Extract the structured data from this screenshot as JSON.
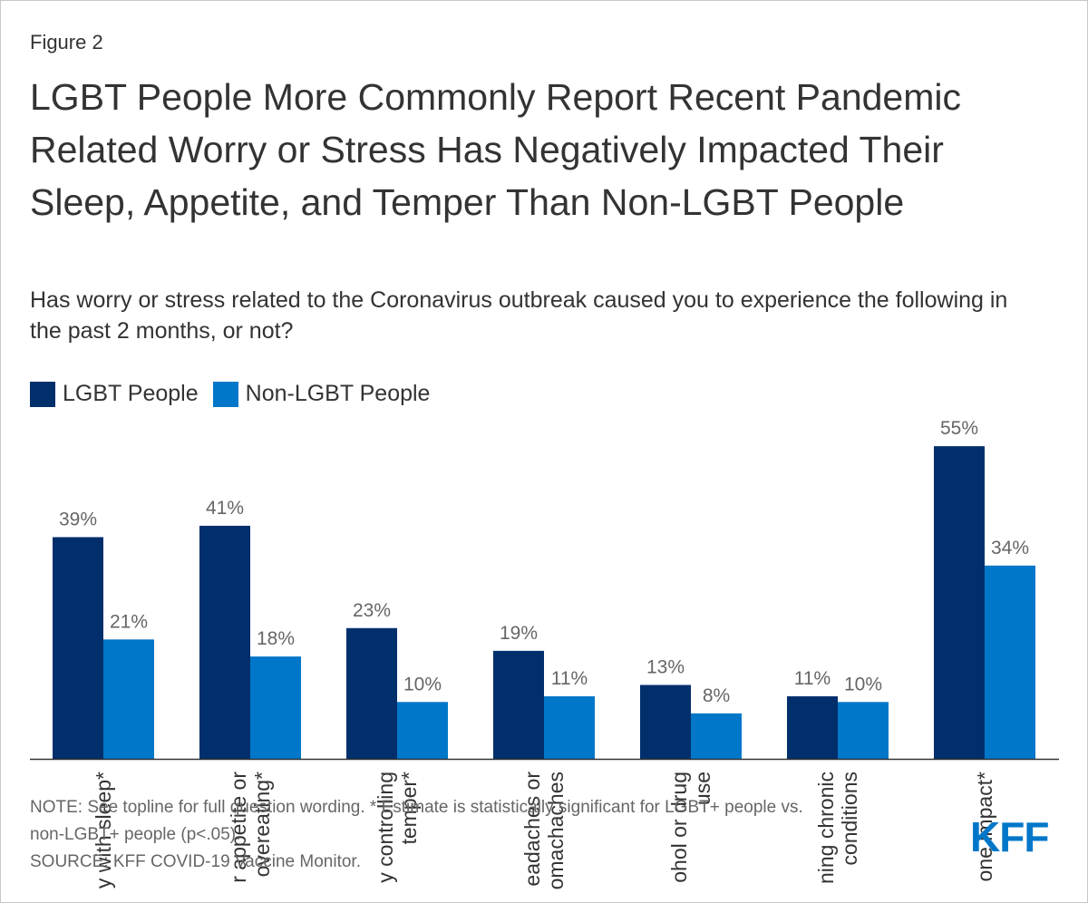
{
  "figure_label": "Figure 2",
  "title": "LGBT People More Commonly Report Recent Pandemic Related Worry or Stress Has Negatively Impacted Their Sleep, Appetite, and Temper Than Non-LGBT People",
  "subtitle": "Has worry or stress related to the Coronavirus outbreak caused you to experience the following in the past 2 months, or not?",
  "colors": {
    "lgbt": "#002f6c",
    "non_lgbt": "#0077c8",
    "axis": "#333333",
    "label": "#666666"
  },
  "chart_data": {
    "type": "bar",
    "title": "",
    "xlabel": "",
    "ylabel": "",
    "ylim": [
      0,
      60
    ],
    "grid": false,
    "legend": "top-left",
    "categories": [
      "Difficulty with sleep*",
      "Poor appetite or overeating*",
      "Difficulty controlling temper*",
      "Frequent headaches or stomachaches",
      "Increased alcohol or drug use",
      "Worsening chronic conditions",
      "At least one impact*"
    ],
    "category_lines_visible": [
      [
        "y with sleep*"
      ],
      [
        "r appetite or",
        "overeating*"
      ],
      [
        "y controlling",
        "temper*"
      ],
      [
        "eadaches or",
        "omachaches"
      ],
      [
        "ohol or drug",
        "use"
      ],
      [
        "ning chronic",
        "conditions"
      ],
      [
        "one impact*"
      ]
    ],
    "series": [
      {
        "name": "LGBT People",
        "values": [
          39,
          41,
          23,
          19,
          13,
          11,
          55
        ],
        "labels": [
          "39%",
          "41%",
          "23%",
          "19%",
          "13%",
          "11%",
          "55%"
        ]
      },
      {
        "name": "Non-LGBT People",
        "values": [
          21,
          18,
          10,
          11,
          8,
          10,
          34
        ],
        "labels": [
          "21%",
          "18%",
          "10%",
          "11%",
          "8%",
          "10%",
          "34%"
        ]
      }
    ]
  },
  "notes": {
    "note_line1": "NOTE: See topline for full question wording. * Estimate is statistically significant for LGBT+ people vs.",
    "note_line2": "non-LGBT+ people (p<.05).",
    "source": "SOURCE: KFF COVID-19 Vaccine Monitor."
  },
  "logo_text": "KFF"
}
